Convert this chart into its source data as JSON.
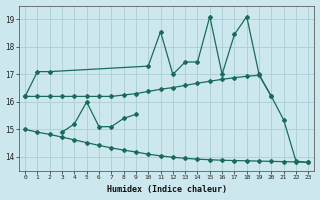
{
  "xlabel": "Humidex (Indice chaleur)",
  "bg_color": "#cce8ee",
  "grid_color": "#aacdd6",
  "line_color": "#1a6b5a",
  "ylim": [
    13.5,
    19.5
  ],
  "yticks": [
    14,
    15,
    16,
    17,
    18,
    19
  ],
  "xticks": [
    0,
    1,
    2,
    3,
    4,
    5,
    6,
    7,
    8,
    9,
    10,
    11,
    12,
    13,
    14,
    15,
    16,
    17,
    18,
    19,
    20,
    21,
    22,
    23
  ],
  "line_top_x": [
    0,
    1,
    2,
    10,
    11,
    12,
    13,
    14,
    15,
    16,
    17,
    18,
    19,
    20,
    21,
    22,
    23
  ],
  "line_top_y": [
    16.2,
    17.1,
    17.1,
    17.3,
    18.55,
    17.0,
    17.45,
    17.45,
    19.1,
    17.0,
    18.45,
    19.1,
    17.0,
    16.2,
    15.35,
    13.85,
    13.8
  ],
  "line_upper_x": [
    0,
    1,
    2,
    3,
    4,
    5,
    6,
    7,
    8,
    9,
    10,
    11,
    12,
    13,
    14,
    15,
    16,
    17,
    18,
    19,
    20
  ],
  "line_upper_y": [
    16.2,
    16.2,
    16.2,
    16.2,
    16.2,
    16.2,
    16.2,
    16.2,
    16.25,
    16.3,
    16.38,
    16.46,
    16.52,
    16.6,
    16.68,
    16.75,
    16.82,
    16.88,
    16.93,
    16.97,
    16.2
  ],
  "line_mid_x": [
    3,
    4,
    5,
    6,
    7,
    8,
    9
  ],
  "line_mid_y": [
    14.9,
    15.2,
    16.0,
    15.1,
    15.1,
    15.4,
    15.55
  ],
  "line_lower_x": [
    0,
    1,
    2,
    3,
    4,
    5,
    6,
    7,
    8,
    9,
    10,
    11,
    12,
    13,
    14,
    15,
    16,
    17,
    18,
    19,
    20,
    21,
    22,
    23
  ],
  "line_lower_y": [
    15.0,
    14.9,
    14.82,
    14.72,
    14.62,
    14.52,
    14.42,
    14.33,
    14.25,
    14.18,
    14.1,
    14.04,
    13.99,
    13.95,
    13.92,
    13.9,
    13.88,
    13.87,
    13.86,
    13.85,
    13.84,
    13.83,
    13.82,
    13.8
  ]
}
